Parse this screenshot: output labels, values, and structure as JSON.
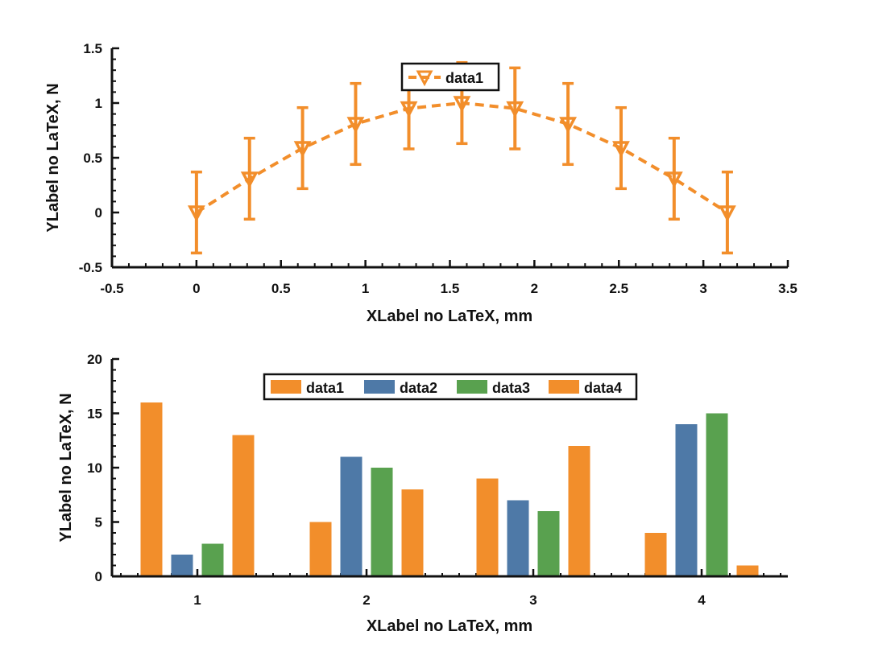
{
  "chart_data": [
    {
      "type": "line",
      "xlabel": "XLabel no LaTeX, mm",
      "ylabel": "YLabel no LaTeX, N",
      "xlim": [
        -0.5,
        3.5
      ],
      "ylim": [
        -0.5,
        1.5
      ],
      "xticks": [
        "-0.5",
        "0",
        "0.5",
        "1",
        "1.5",
        "2",
        "2.5",
        "3",
        "3.5"
      ],
      "yticks": [
        "-0.5",
        "0",
        "0.5",
        "1",
        "1.5"
      ],
      "legend_position": "top-center",
      "line_style": "dashed",
      "marker": "triangle-down",
      "series": [
        {
          "name": "data1",
          "color": "#f28e2b",
          "x": [
            0,
            0.314,
            0.628,
            0.942,
            1.257,
            1.571,
            1.885,
            2.199,
            2.513,
            2.827,
            3.142
          ],
          "y": [
            0,
            0.309,
            0.588,
            0.809,
            0.951,
            1.0,
            0.951,
            0.809,
            0.588,
            0.309,
            0
          ],
          "error": [
            0.37,
            0.37,
            0.37,
            0.37,
            0.37,
            0.37,
            0.37,
            0.37,
            0.37,
            0.37,
            0.37
          ]
        }
      ]
    },
    {
      "type": "bar",
      "xlabel": "XLabel no LaTeX, mm",
      "ylabel": "YLabel no LaTeX, N",
      "categories": [
        "1",
        "2",
        "3",
        "4"
      ],
      "ylim": [
        0,
        20
      ],
      "yticks": [
        "0",
        "5",
        "10",
        "15",
        "20"
      ],
      "legend_position": "top-center",
      "series": [
        {
          "name": "data1",
          "color": "#f28e2b",
          "values": [
            16,
            5,
            9,
            4
          ]
        },
        {
          "name": "data2",
          "color": "#4e79a7",
          "values": [
            2,
            11,
            7,
            14
          ]
        },
        {
          "name": "data3",
          "color": "#59a14f",
          "values": [
            3,
            10,
            6,
            15
          ]
        },
        {
          "name": "data4",
          "color": "#f28e2b",
          "values": [
            13,
            8,
            12,
            1
          ]
        }
      ]
    }
  ]
}
